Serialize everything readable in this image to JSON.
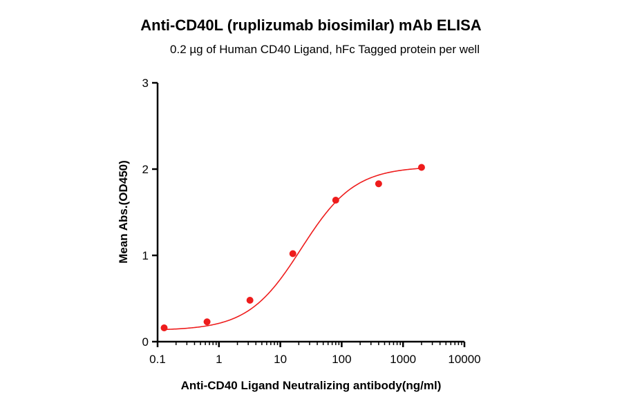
{
  "chart_data": {
    "type": "scatter",
    "title": "Anti-CD40L (ruplizumab biosimilar) mAb ELISA",
    "subtitle": "0.2 µg of Human CD40 Ligand, hFc Tagged protein per well",
    "xlabel": "Anti-CD40 Ligand Neutralizing antibody(ng/ml)",
    "ylabel": "Mean Abs.(OD450)",
    "x_scale": "log",
    "xlim": [
      0.1,
      10000
    ],
    "ylim": [
      0,
      3
    ],
    "x_ticks": [
      "0.1",
      "1",
      "10",
      "100",
      "1000",
      "10000"
    ],
    "y_ticks": [
      "0",
      "1",
      "2",
      "3"
    ],
    "grid": false,
    "series": [
      {
        "color": "#ee1c1c",
        "points": [
          {
            "x": 0.128,
            "y": 0.16
          },
          {
            "x": 0.64,
            "y": 0.23
          },
          {
            "x": 3.2,
            "y": 0.48
          },
          {
            "x": 16,
            "y": 1.02
          },
          {
            "x": 80,
            "y": 1.64
          },
          {
            "x": 400,
            "y": 1.83
          },
          {
            "x": 2000,
            "y": 2.02
          }
        ],
        "fit": {
          "model": "4PL",
          "bottom": 0.13,
          "top": 2.03,
          "ec50": 22,
          "hill": 1.0
        }
      }
    ]
  }
}
